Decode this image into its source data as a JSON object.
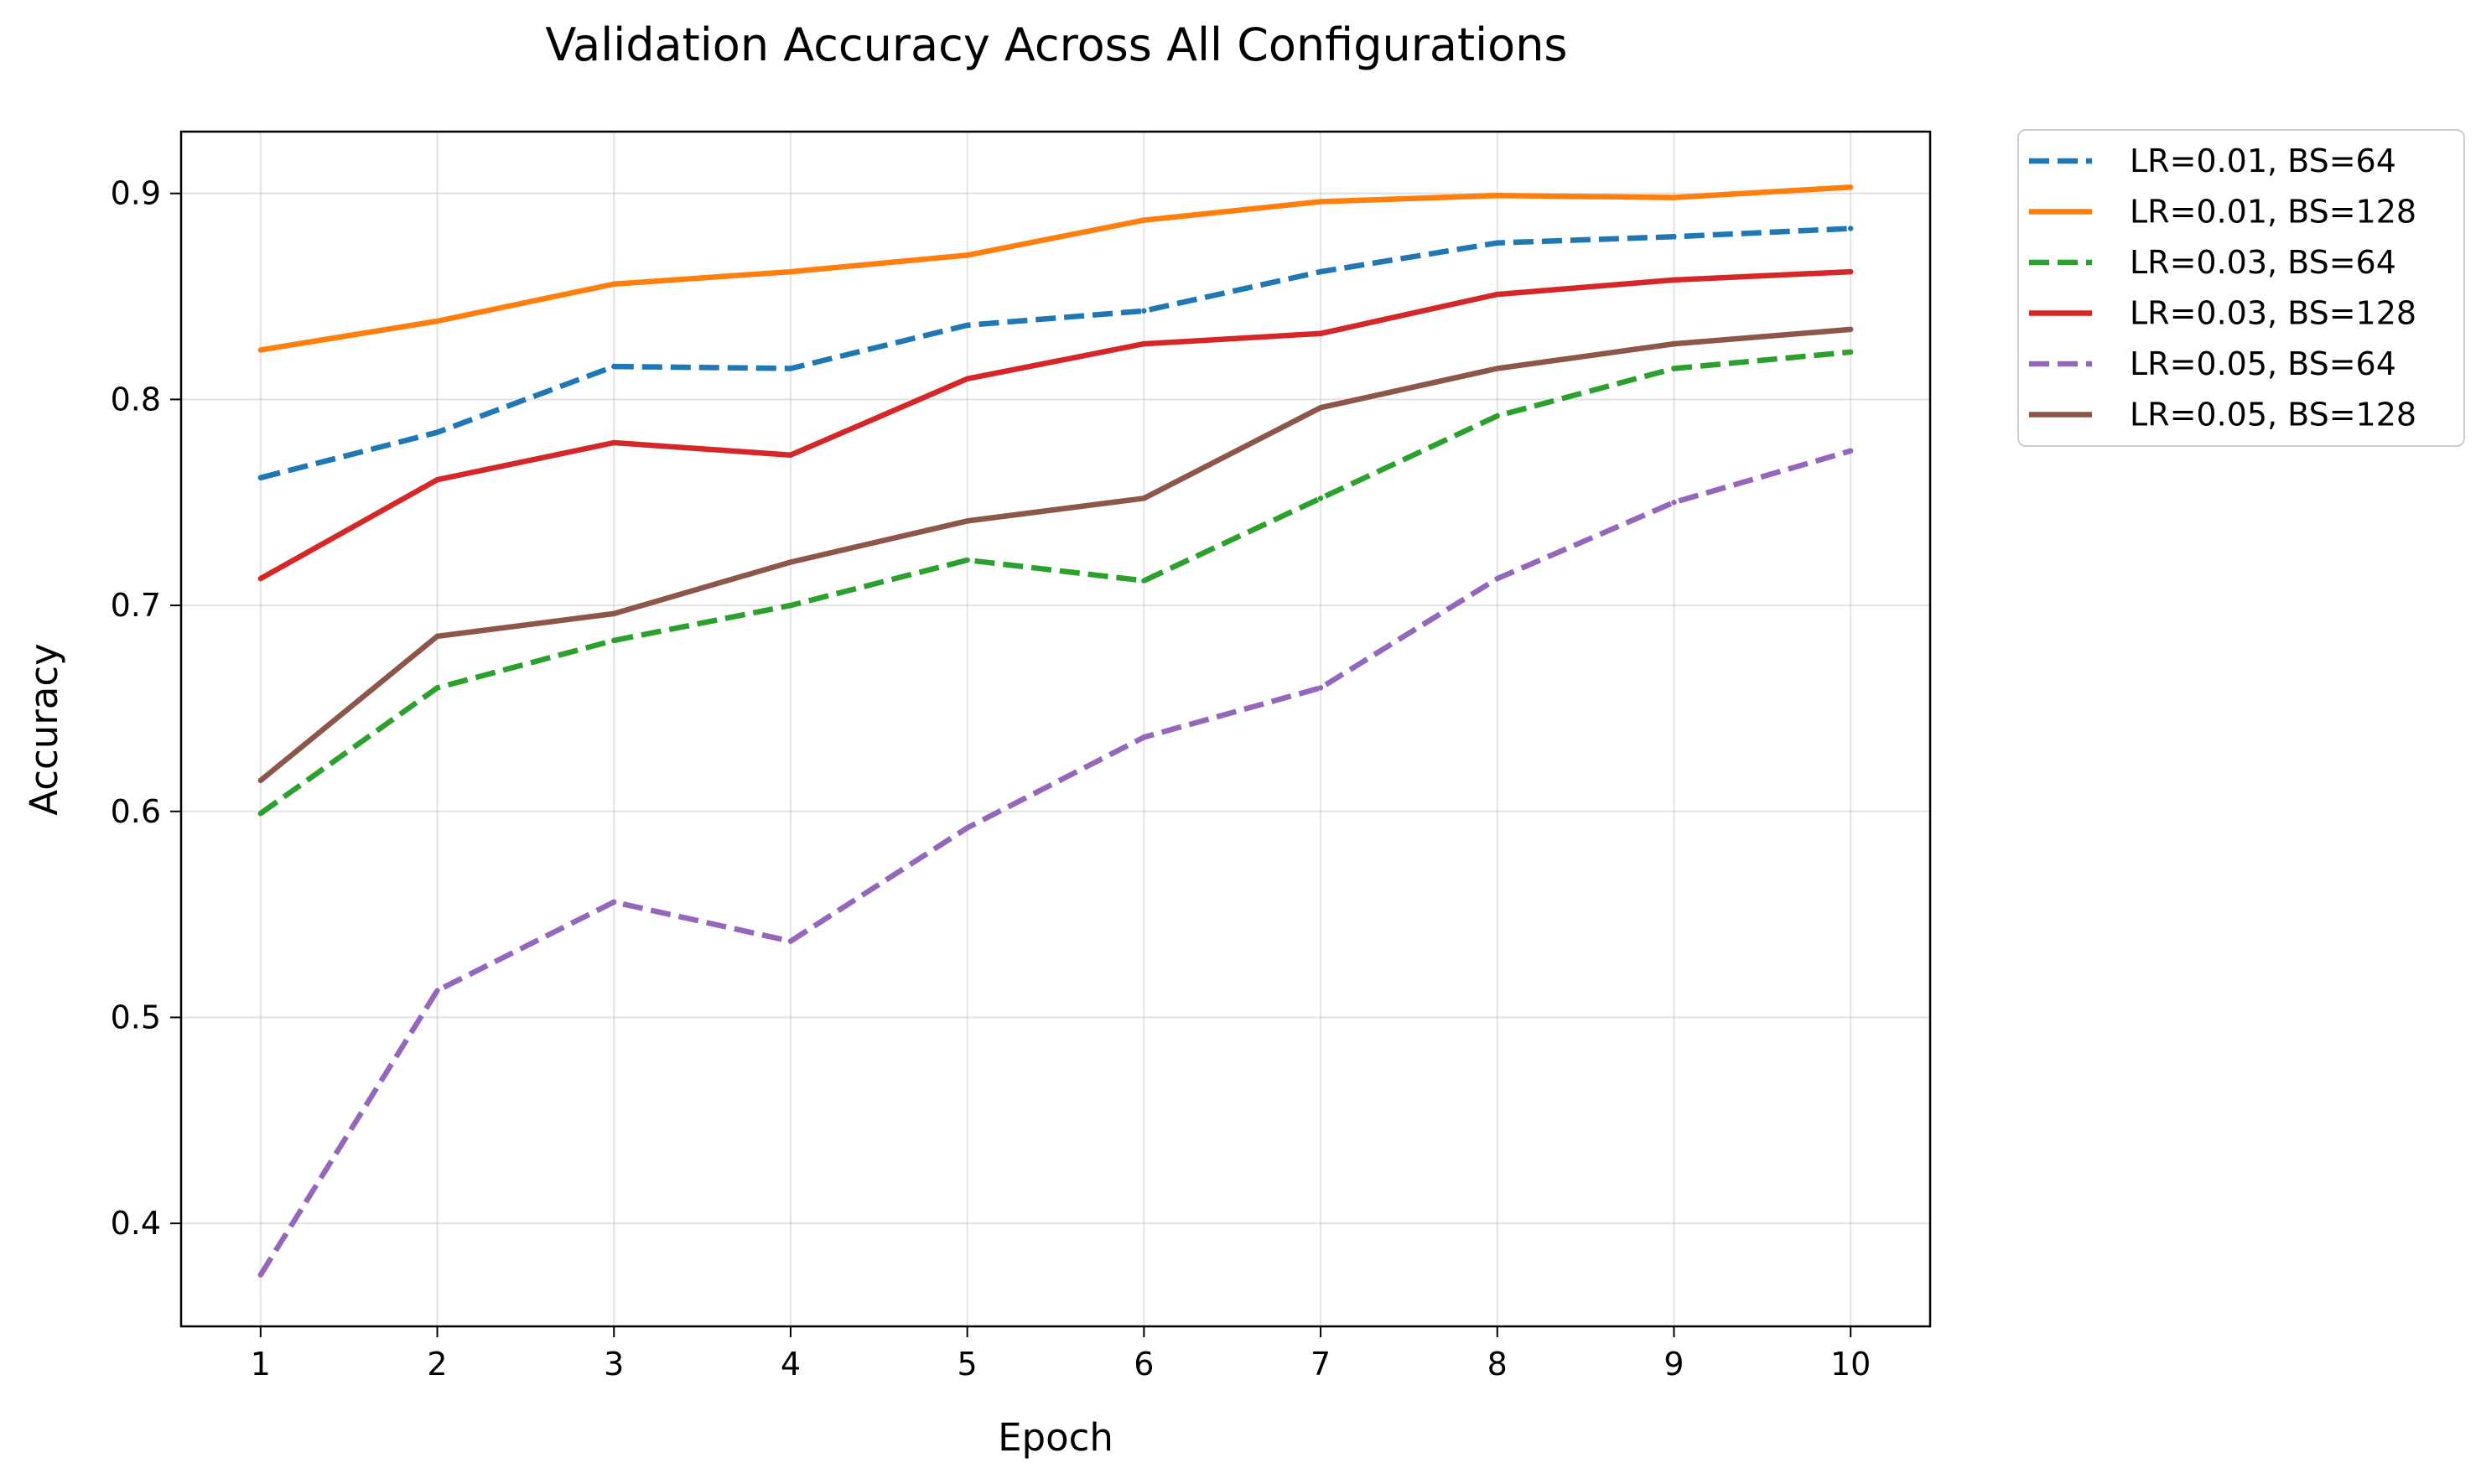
{
  "chart_data": {
    "type": "line",
    "title": "Validation Accuracy Across All Configurations",
    "xlabel": "Epoch",
    "ylabel": "Accuracy",
    "x": [
      1,
      2,
      3,
      4,
      5,
      6,
      7,
      8,
      9,
      10
    ],
    "xlim": [
      0.55,
      10.45
    ],
    "ylim": [
      0.35,
      0.93
    ],
    "yticks": [
      0.4,
      0.5,
      0.6,
      0.7,
      0.8,
      0.9
    ],
    "ytick_labels": [
      "0.4",
      "0.5",
      "0.6",
      "0.7",
      "0.8",
      "0.9"
    ],
    "xtick_labels": [
      "1",
      "2",
      "3",
      "4",
      "5",
      "6",
      "7",
      "8",
      "9",
      "10"
    ],
    "grid": true,
    "legend_position": "outside-top-right",
    "series": [
      {
        "name": "LR=0.01, BS=64",
        "color": "#1f77b4",
        "dash": "dashed",
        "values": [
          0.762,
          0.784,
          0.816,
          0.815,
          0.836,
          0.843,
          0.862,
          0.876,
          0.879,
          0.883
        ]
      },
      {
        "name": "LR=0.01, BS=128",
        "color": "#ff7f0e",
        "dash": "solid",
        "values": [
          0.824,
          0.838,
          0.856,
          0.862,
          0.87,
          0.887,
          0.896,
          0.899,
          0.898,
          0.903
        ]
      },
      {
        "name": "LR=0.03, BS=64",
        "color": "#2ca02c",
        "dash": "dashed",
        "values": [
          0.599,
          0.66,
          0.683,
          0.7,
          0.722,
          0.712,
          0.752,
          0.792,
          0.815,
          0.823
        ]
      },
      {
        "name": "LR=0.03, BS=128",
        "color": "#d62728",
        "dash": "solid",
        "values": [
          0.713,
          0.761,
          0.779,
          0.773,
          0.81,
          0.827,
          0.832,
          0.851,
          0.858,
          0.862
        ]
      },
      {
        "name": "LR=0.05, BS=64",
        "color": "#9467bd",
        "dash": "dashed",
        "values": [
          0.375,
          0.513,
          0.556,
          0.537,
          0.592,
          0.636,
          0.66,
          0.713,
          0.75,
          0.775
        ]
      },
      {
        "name": "LR=0.05, BS=128",
        "color": "#8c564b",
        "dash": "solid",
        "values": [
          0.615,
          0.685,
          0.696,
          0.721,
          0.741,
          0.752,
          0.796,
          0.815,
          0.827,
          0.834
        ]
      }
    ]
  }
}
